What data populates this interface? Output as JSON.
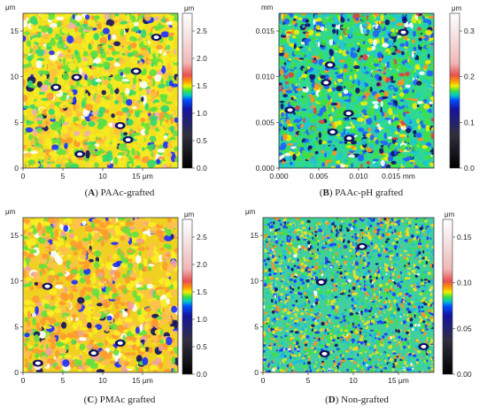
{
  "panels": [
    {
      "letter": "A",
      "caption": "PAAc-grafted",
      "unit_y": "μm",
      "unit_x": "μm",
      "colorbar_unit": "μm",
      "x_ticks": [
        "0",
        "5",
        "10",
        "15 μm"
      ],
      "y_ticks": [
        "15",
        "10",
        "5",
        "0"
      ],
      "colorbar_ticks": [
        "2.5",
        "2.0",
        "1.5",
        "1.0",
        "0.5",
        "0.0"
      ],
      "palette": "map_a"
    },
    {
      "letter": "B",
      "caption": "PAAc-pH grafted",
      "unit_y": "mm",
      "unit_x": "mm",
      "colorbar_unit": "μm",
      "x_ticks": [
        "0.000",
        "0.005",
        "0.010",
        "0.015 mm"
      ],
      "y_ticks": [
        "0.015",
        "0.010",
        "0.005",
        "0.000"
      ],
      "colorbar_ticks": [
        "0.3",
        "0.2",
        "0.1",
        "0.0"
      ],
      "palette": "map_b"
    },
    {
      "letter": "C",
      "caption": "PMAc grafted",
      "unit_y": "μm",
      "unit_x": "μm",
      "colorbar_unit": "μm",
      "x_ticks": [
        "0",
        "5",
        "10",
        "15 μm"
      ],
      "y_ticks": [
        "15",
        "10",
        "5",
        "0"
      ],
      "colorbar_ticks": [
        "2.5",
        "2.0",
        "1.5",
        "1.0",
        "0.5",
        "0.0"
      ],
      "palette": "map_c"
    },
    {
      "letter": "D",
      "caption": "Non-grafted",
      "unit_y": "μm",
      "unit_x": "μm",
      "colorbar_unit": "μm",
      "x_ticks": [
        "0",
        "5",
        "10",
        "15 μm"
      ],
      "y_ticks": [
        "15",
        "10",
        "5",
        "0"
      ],
      "colorbar_ticks": [
        "0.15",
        "0.10",
        "0.05",
        "0.00"
      ],
      "palette": "map_d"
    }
  ],
  "colorbar_colors": [
    "#ffffff",
    "#f4d6d6",
    "#e06060",
    "#ffb000",
    "#f0f000",
    "#40e040",
    "#00c0c0",
    "#0040ff",
    "#1010a0",
    "#000000"
  ]
}
